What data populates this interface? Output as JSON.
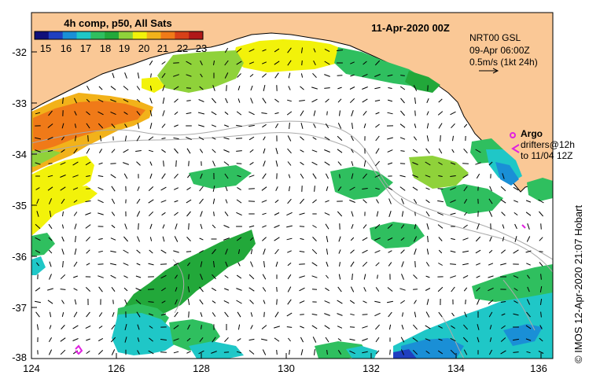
{
  "title": {
    "colorbar_title": "4h comp, p50, All Sats",
    "date": "11-Apr-2020 00Z"
  },
  "colorbar": {
    "ticks": [
      "15",
      "16",
      "17",
      "18",
      "19",
      "20",
      "21",
      "22",
      "23"
    ],
    "colors": [
      "#10107a",
      "#1f3fc0",
      "#1a8fd6",
      "#1fc7c7",
      "#2fbf5f",
      "#22a83a",
      "#8fd23a",
      "#f2f20a",
      "#f2b21a",
      "#f07a18",
      "#d84018",
      "#b01818"
    ]
  },
  "info": {
    "line1": "NRT00 GSL",
    "line2": "09-Apr 06:00Z",
    "line3": "0.5m/s (1kt 24h)"
  },
  "argo": {
    "label": "Argo",
    "drifters_line1": "drifters@12h",
    "drifters_line2": "to 11/04 12Z",
    "color": "#e020e0"
  },
  "credit": "© IMOS 12-Apr-2020 21:07 Hobart",
  "axes": {
    "lon_ticks": [
      "124",
      "126",
      "128",
      "130",
      "132",
      "134",
      "136"
    ],
    "lat_ticks": [
      "-32",
      "-33",
      "-34",
      "-35",
      "-36",
      "-37",
      "-38"
    ]
  },
  "colors": {
    "land": "#fac896",
    "ocean": "#ffffff",
    "contour": "#aaaaaa"
  }
}
